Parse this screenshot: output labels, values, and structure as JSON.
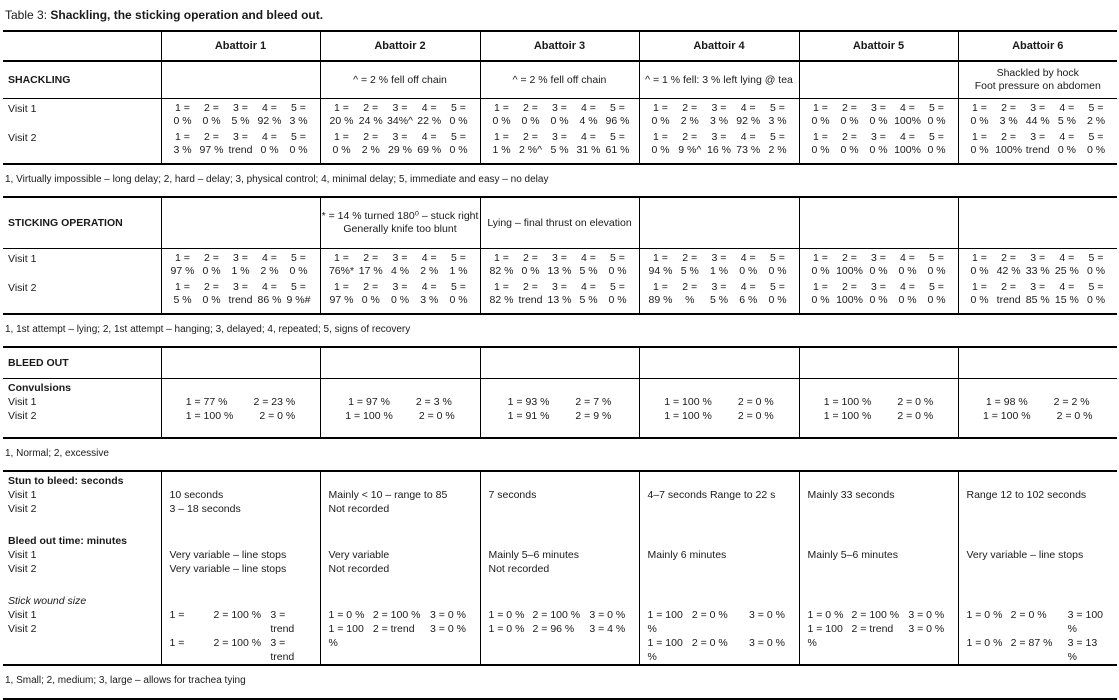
{
  "title": {
    "prefix": "Table 3: ",
    "bold": "Shackling, the sticking operation and bleed out."
  },
  "labels": {
    "visit1": "Visit 1",
    "visit2": "Visit 2"
  },
  "scale_keys": [
    "1 =",
    "2 =",
    "3 =",
    "4 =",
    "5 ="
  ],
  "header": {
    "columns": [
      "Abattoir 1",
      "Abattoir 2",
      "Abattoir 3",
      "Abattoir 4",
      "Abattoir 5",
      "Abattoir 6"
    ]
  },
  "shackling": {
    "label": "SHACKLING",
    "notes": [
      [],
      [
        "^ = 2 % fell off chain"
      ],
      [
        "^ = 2 % fell off chain"
      ],
      [
        "^ = 1 % fell: 3 % left lying @ tea"
      ],
      [],
      [
        "Shackled by hock",
        "Foot pressure on abdomen"
      ]
    ],
    "visit1": [
      [
        "0 %",
        "0 %",
        "5 %",
        "92 %",
        "3 %"
      ],
      [
        "20 %",
        "24 %",
        "34%^",
        "22 %",
        "0 %"
      ],
      [
        "0 %",
        "0 %",
        "0 %",
        "4 %",
        "96 %"
      ],
      [
        "0 %",
        "2 %",
        "3 %",
        "92 %",
        "3 %"
      ],
      [
        "0 %",
        "0 %",
        "0 %",
        "100%",
        "0 %"
      ],
      [
        "0 %",
        "3 %",
        "44 %",
        "5 %",
        "2 %"
      ]
    ],
    "visit2": [
      [
        "3 %",
        "97 %",
        "trend",
        "0 %",
        "0 %"
      ],
      [
        "0 %",
        "2 %",
        "29 %",
        "69 %",
        "0 %"
      ],
      [
        "1 %",
        "2 %^",
        "5 %",
        "31 %",
        "61 %"
      ],
      [
        "0 %",
        "9 %^",
        "16 %",
        "73 %",
        "2 %"
      ],
      [
        "0 %",
        "0 %",
        "0 %",
        "100%",
        "0 %"
      ],
      [
        "0 %",
        "100%",
        "trend",
        "0 %",
        "0 %"
      ]
    ],
    "footnote": "1, Virtually impossible – long delay; 2, hard – delay; 3,  physical control; 4, minimal delay; 5, immediate and easy –  no delay"
  },
  "sticking": {
    "label": "STICKING OPERATION",
    "notes": [
      [],
      [
        "* = 14 % turned 180⁰ – stuck right",
        "Generally knife too blunt"
      ],
      [
        "Lying – final thrust on elevation"
      ],
      [],
      [],
      []
    ],
    "visit1": [
      [
        "97 %",
        "0 %",
        "1 %",
        "2 %",
        "0 %"
      ],
      [
        "76%*",
        "17 %",
        "4 %",
        "2 %",
        "1 %"
      ],
      [
        "82 %",
        "0 %",
        "13 %",
        "5 %",
        "0 %"
      ],
      [
        "94 %",
        "5 %",
        "1 %",
        "0 %",
        "0 %"
      ],
      [
        "0 %",
        "100%",
        "0 %",
        "0 %",
        "0 %"
      ],
      [
        "0 %",
        "42 %",
        "33 %",
        "25 %",
        "0 %"
      ]
    ],
    "visit2": [
      [
        "5 %",
        "0 %",
        "trend",
        "86 %",
        "9 %#"
      ],
      [
        "97 %",
        "0 %",
        "0 %",
        "3 %",
        "0 %"
      ],
      [
        "82 %",
        "trend",
        "13 %",
        "5 %",
        "0 %"
      ],
      [
        "89 %",
        "%",
        "5 %",
        "6 %",
        "0 %"
      ],
      [
        "0 %",
        "100%",
        "0 %",
        "0 %",
        "0 %"
      ],
      [
        "0 %",
        "trend",
        "85 %",
        "15 %",
        "0 %"
      ]
    ],
    "footnote": "1, 1st attempt – lying; 2, 1st attempt – hanging; 3, delayed; 4, repeated; 5, signs of recovery"
  },
  "bleedout": {
    "label": "BLEED OUT",
    "convulsions_label": "Convulsions",
    "visit1": [
      [
        "1 = 77 %",
        "2 = 23 %"
      ],
      [
        "1 = 97 %",
        "2 = 3 %"
      ],
      [
        "1 = 93 %",
        "2 = 7 %"
      ],
      [
        "1 = 100 %",
        "2 = 0 %"
      ],
      [
        "1 = 100 %",
        "2 = 0 %"
      ],
      [
        "1 = 98 %",
        "2 = 2 %"
      ]
    ],
    "visit2": [
      [
        "1 = 100 %",
        "2 = 0 %"
      ],
      [
        "1 = 100 %",
        "2 = 0 %"
      ],
      [
        "1 = 91 %",
        "2 = 9 %"
      ],
      [
        "1 = 100 %",
        "2 = 0 %"
      ],
      [
        "1 = 100 %",
        "2 = 0 %"
      ],
      [
        "1 = 100 %",
        "2 = 0 %"
      ]
    ],
    "footnote": "1, Normal; 2, excessive"
  },
  "stun": {
    "label": "Stun to bleed: seconds",
    "visit1": [
      "10 seconds",
      "Mainly < 10 – range to 85",
      "7 seconds",
      "4–7 seconds Range to 22 s",
      "Mainly 33 seconds",
      "Range 12 to 102 seconds"
    ],
    "visit2": [
      "3 – 18 seconds",
      "Not recorded",
      "",
      "",
      "",
      ""
    ]
  },
  "bleedtime": {
    "label": "Bleed out time: minutes",
    "visit1": [
      "Very variable – line stops",
      "Very variable",
      "Mainly 5–6 minutes",
      "Mainly 6 minutes",
      "Mainly 5–6 minutes",
      "Very variable – line stops"
    ],
    "visit2": [
      "Very variable – line stops",
      "Not recorded",
      "Not recorded",
      "",
      "",
      ""
    ]
  },
  "wound": {
    "label": "Stick wound size",
    "visit1": [
      [
        "1 =",
        "2 = 100 %",
        "3 = trend"
      ],
      [
        "1 = 0 %",
        "2 = 100 %",
        "3 = 0 %"
      ],
      [
        "1 = 0 %",
        "2 = 100 %",
        "3 = 0 %"
      ],
      [
        "1 = 100 %",
        "2 = 0 %",
        "3 = 0 %"
      ],
      [
        "1 = 0 %",
        "2 = 100 %",
        "3 = 0 %"
      ],
      [
        "1 = 0 %",
        "2 = 0 %",
        "3 = 100 %"
      ]
    ],
    "visit2": [
      [
        "1 =",
        "2 = 100 %",
        "3 = trend"
      ],
      [
        "1 = 100 %",
        "2 = trend",
        "3 = 0 %"
      ],
      [
        "1 = 0 %",
        "2 = 96 %",
        "3 = 4 %"
      ],
      [
        "1 = 100 %",
        "2 = 0 %",
        "3 = 0 %"
      ],
      [
        "1 = 100 %",
        "2 = trend",
        "3 = 0 %"
      ],
      [
        "1 = 0 %",
        "2 = 87 %",
        "3 = 13 %"
      ]
    ],
    "footnote": "1, Small; 2, medium; 3, large – allows for trachea tying"
  }
}
